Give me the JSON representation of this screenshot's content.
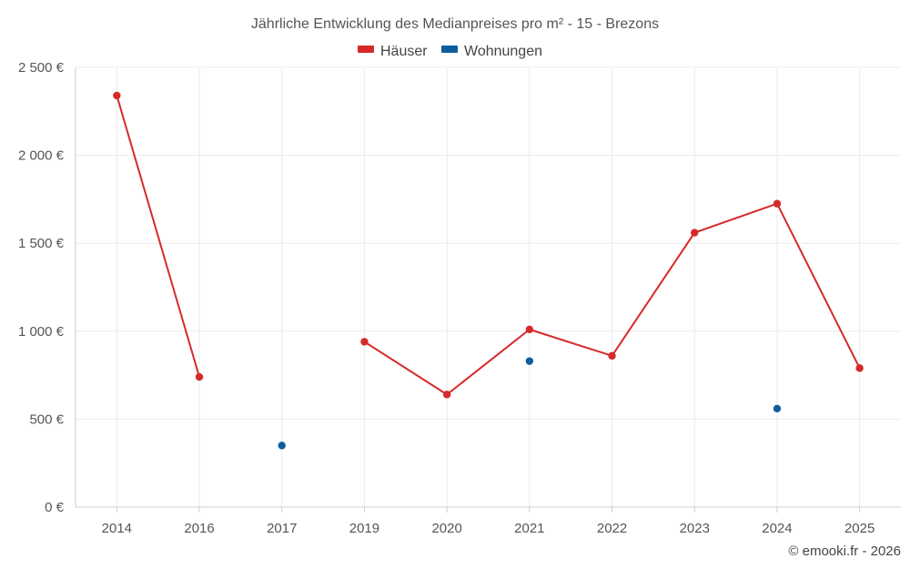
{
  "chart_data": {
    "type": "line",
    "title": "Jährliche Entwicklung des Medianpreises pro m² - 15 - Brezons",
    "categories": [
      "2014",
      "2016",
      "2017",
      "2019",
      "2020",
      "2021",
      "2022",
      "2023",
      "2024",
      "2025"
    ],
    "series": [
      {
        "name": "Häuser",
        "color": "#d62a2a",
        "values": [
          2340,
          740,
          null,
          940,
          640,
          1010,
          860,
          1560,
          1725,
          790
        ]
      },
      {
        "name": "Wohnungen",
        "color": "#0e5e9e",
        "values": [
          null,
          null,
          350,
          null,
          null,
          830,
          null,
          null,
          560,
          null
        ]
      }
    ],
    "ylim": [
      0,
      2500
    ],
    "yticks": [
      0,
      500,
      1000,
      1500,
      2000,
      2500
    ],
    "ytick_labels": [
      "0 €",
      "500 €",
      "1 000 €",
      "1 500 €",
      "2 000 €",
      "2 500 €"
    ],
    "xlabel": "",
    "ylabel": "",
    "legend_position": "top-center",
    "grid": true
  },
  "credit": "© emooki.fr - 2026"
}
